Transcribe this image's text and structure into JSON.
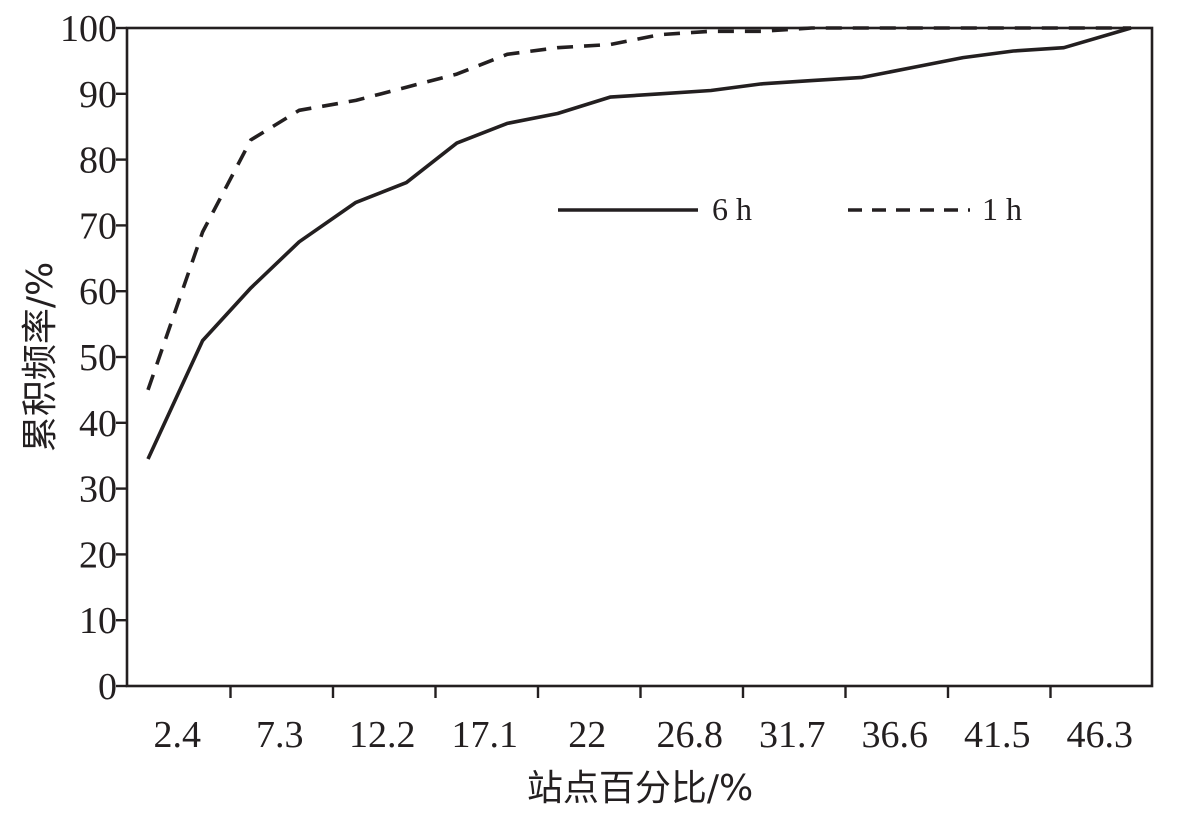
{
  "chart_data": {
    "type": "line",
    "xlabel": "站点百分比/%",
    "ylabel": "累积频率/%",
    "x_tick_labels": [
      "2.4",
      "7.3",
      "12.2",
      "17.1",
      "22",
      "26.8",
      "31.7",
      "36.6",
      "41.5",
      "46.3"
    ],
    "y_tick_labels": [
      "0",
      "10",
      "20",
      "30",
      "40",
      "50",
      "60",
      "70",
      "80",
      "90",
      "100"
    ],
    "xlim": [
      0,
      48.8
    ],
    "ylim": [
      0,
      100
    ],
    "grid": false,
    "legend_position": "upper-right",
    "series": [
      {
        "name": "6 h",
        "style": "solid",
        "color": "#231f20",
        "x": [
          1.0,
          3.6,
          5.9,
          8.2,
          10.9,
          13.3,
          15.7,
          18.1,
          20.5,
          23.0,
          25.4,
          27.8,
          30.2,
          32.6,
          35.0,
          37.4,
          39.8,
          42.2,
          44.6,
          47.8
        ],
        "y": [
          34.5,
          52.5,
          60.5,
          67.5,
          73.5,
          76.5,
          82.5,
          85.5,
          87.0,
          89.5,
          90.0,
          90.5,
          91.5,
          92.0,
          92.5,
          94.0,
          95.5,
          96.5,
          97.0,
          100.0
        ]
      },
      {
        "name": "1 h",
        "style": "dashed",
        "color": "#231f20",
        "x": [
          1.0,
          3.6,
          5.9,
          8.2,
          10.9,
          13.3,
          15.7,
          18.1,
          20.5,
          23.0,
          25.4,
          27.8,
          30.2,
          32.6,
          35.0,
          37.4,
          39.8,
          42.2,
          44.6,
          47.8
        ],
        "y": [
          45.0,
          69.0,
          83.0,
          87.5,
          89.0,
          91.0,
          93.0,
          96.0,
          97.0,
          97.5,
          99.0,
          99.5,
          99.5,
          100.0,
          100.0,
          100.0,
          100.0,
          100.0,
          100.0,
          100.0
        ]
      }
    ]
  }
}
